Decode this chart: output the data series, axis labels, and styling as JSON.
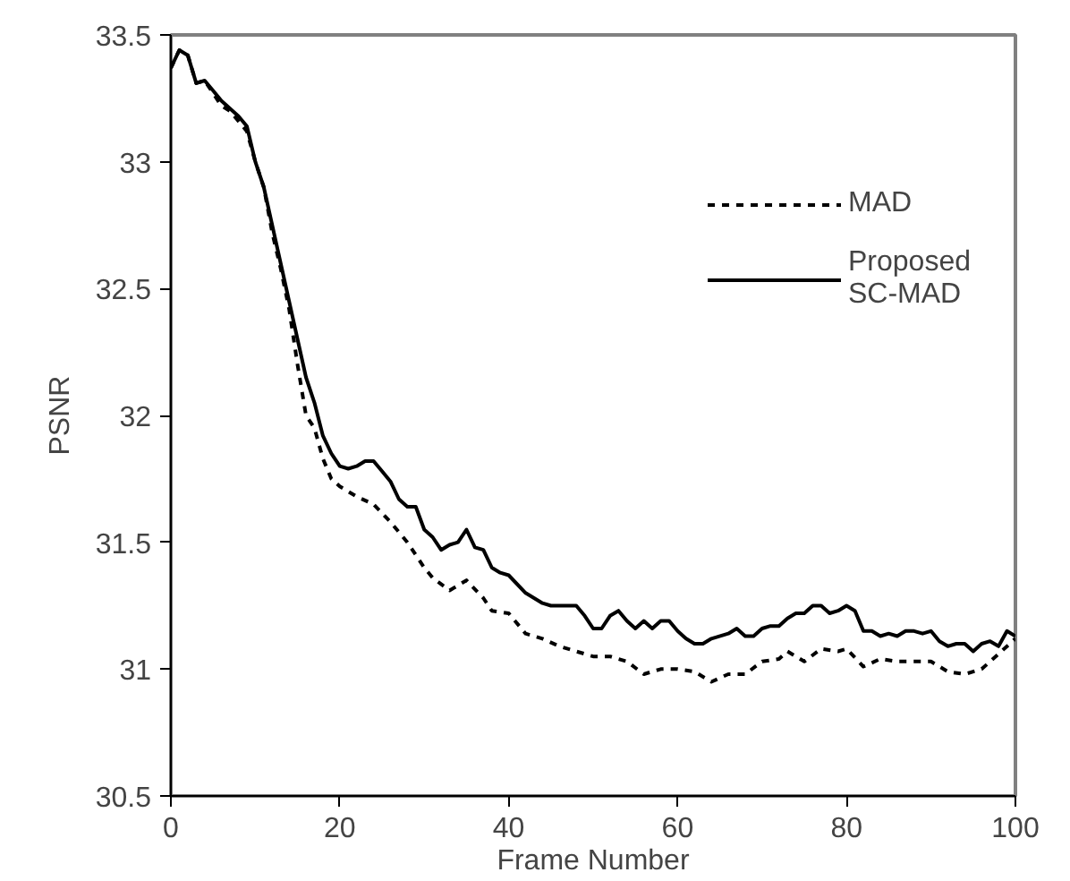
{
  "chart_data": {
    "type": "line",
    "xlabel": "Frame Number",
    "ylabel": "PSNR",
    "xlim": [
      0,
      100
    ],
    "xticks": [
      0,
      20,
      40,
      60,
      80,
      100
    ],
    "ylim": [
      30.5,
      33.5
    ],
    "yticks": [
      30.5,
      31,
      31.5,
      32,
      32.5,
      33,
      33.5
    ],
    "grid": false,
    "legend": "top right",
    "series": [
      {
        "name": "MAD",
        "color": "#000000",
        "line_style": "dashed",
        "x": [
          0,
          1,
          2,
          3,
          4,
          5,
          6,
          7,
          8,
          9,
          10,
          11,
          12,
          13,
          14,
          15,
          16,
          17,
          18,
          19,
          20,
          22,
          24,
          26,
          28,
          30,
          31,
          33,
          35,
          37,
          38,
          40,
          42,
          44,
          46,
          48,
          50,
          52,
          54,
          56,
          58,
          60,
          62,
          64,
          66,
          68,
          70,
          72,
          73,
          75,
          77,
          79,
          80,
          82,
          84,
          86,
          88,
          90,
          92,
          94,
          96,
          98,
          100
        ],
        "values": [
          33.37,
          33.44,
          33.42,
          33.31,
          33.32,
          33.27,
          33.22,
          33.2,
          33.16,
          33.12,
          33.0,
          32.9,
          32.72,
          32.58,
          32.42,
          32.2,
          32.0,
          31.95,
          31.83,
          31.75,
          31.72,
          31.68,
          31.65,
          31.58,
          31.5,
          31.4,
          31.36,
          31.31,
          31.35,
          31.28,
          31.23,
          31.22,
          31.14,
          31.12,
          31.09,
          31.07,
          31.05,
          31.05,
          31.03,
          30.98,
          31.0,
          31.0,
          30.99,
          30.95,
          30.98,
          30.98,
          31.03,
          31.04,
          31.07,
          31.03,
          31.08,
          31.07,
          31.08,
          31.01,
          31.04,
          31.03,
          31.03,
          31.03,
          30.99,
          30.98,
          31.0,
          31.06,
          31.12
        ]
      },
      {
        "name": "Proposed\nSC-MAD",
        "color": "#000000",
        "line_style": "solid",
        "x": [
          0,
          1,
          2,
          3,
          4,
          5,
          6,
          7,
          8,
          9,
          10,
          11,
          12,
          13,
          14,
          15,
          16,
          17,
          18,
          19,
          20,
          21,
          22,
          23,
          24,
          25,
          26,
          27,
          28,
          29,
          30,
          31,
          32,
          33,
          34,
          35,
          36,
          37,
          38,
          39,
          40,
          42,
          44,
          45,
          48,
          49,
          50,
          51,
          52,
          53,
          54,
          55,
          56,
          57,
          58,
          59,
          60,
          61,
          62,
          63,
          64,
          66,
          67,
          68,
          69,
          70,
          71,
          72,
          73,
          74,
          75,
          76,
          77,
          78,
          79,
          80,
          81,
          82,
          83,
          84,
          85,
          86,
          87,
          88,
          89,
          90,
          91,
          92,
          93,
          94,
          95,
          96,
          97,
          98,
          99,
          100
        ],
        "values": [
          33.37,
          33.44,
          33.42,
          33.31,
          33.32,
          33.28,
          33.24,
          33.21,
          33.18,
          33.14,
          33.0,
          32.9,
          32.75,
          32.6,
          32.45,
          32.3,
          32.15,
          32.05,
          31.92,
          31.85,
          31.8,
          31.79,
          31.8,
          31.82,
          31.82,
          31.78,
          31.74,
          31.67,
          31.64,
          31.64,
          31.55,
          31.52,
          31.47,
          31.49,
          31.5,
          31.55,
          31.48,
          31.47,
          31.4,
          31.38,
          31.37,
          31.3,
          31.26,
          31.25,
          31.25,
          31.21,
          31.16,
          31.16,
          31.21,
          31.23,
          31.19,
          31.16,
          31.19,
          31.16,
          31.19,
          31.19,
          31.15,
          31.12,
          31.1,
          31.1,
          31.12,
          31.14,
          31.16,
          31.13,
          31.13,
          31.16,
          31.17,
          31.17,
          31.2,
          31.22,
          31.22,
          31.25,
          31.25,
          31.22,
          31.23,
          31.25,
          31.23,
          31.15,
          31.15,
          31.13,
          31.14,
          31.13,
          31.15,
          31.15,
          31.14,
          31.15,
          31.11,
          31.09,
          31.1,
          31.1,
          31.07,
          31.1,
          31.11,
          31.09,
          31.15,
          31.13
        ]
      }
    ]
  }
}
